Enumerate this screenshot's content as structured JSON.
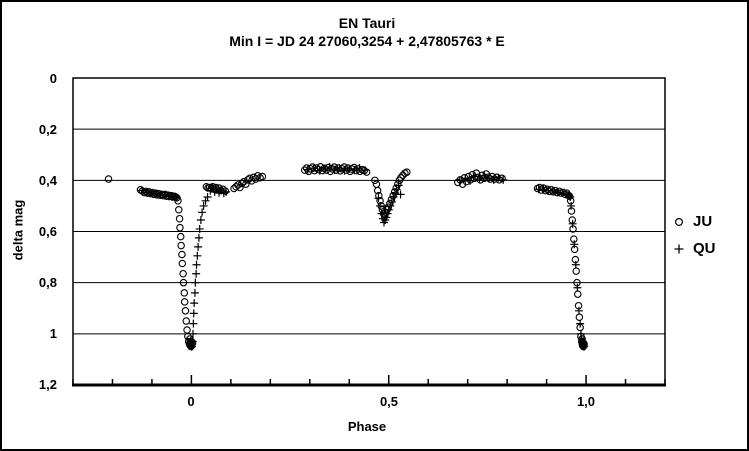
{
  "colors": {
    "background": "#ffffff",
    "foreground": "#000000"
  },
  "chart_data": {
    "type": "scatter",
    "title": "EN Tauri",
    "subtitle": "Min I = JD 24 27060,3254 + 2,47805763 * E",
    "xlabel": "Phase",
    "ylabel": "delta mag",
    "xlim": [
      -0.3,
      1.2
    ],
    "ylim": [
      0,
      1.2
    ],
    "y_axis_inverted": true,
    "grid": "horizontal-major",
    "y_gridlines": [
      0.2,
      0.4,
      0.6,
      0.8,
      1.0
    ],
    "x_minor_step": 0.1,
    "x_major_values": [
      0,
      0.5,
      1.0
    ],
    "x_ticks": [
      {
        "value": 0,
        "label": "0"
      },
      {
        "value": 0.5,
        "label": "0,5"
      },
      {
        "value": 1.0,
        "label": "1,0"
      }
    ],
    "y_ticks": [
      {
        "value": 0,
        "label": "0"
      },
      {
        "value": 0.2,
        "label": "0,2"
      },
      {
        "value": 0.4,
        "label": "0,4"
      },
      {
        "value": 0.6,
        "label": "0,6"
      },
      {
        "value": 0.8,
        "label": "0,8"
      },
      {
        "value": 1.0,
        "label": "1"
      },
      {
        "value": 1.2,
        "label": "1,2"
      }
    ],
    "legend_position": "right-outside",
    "series": [
      {
        "name": "JU",
        "marker": "circle",
        "points": [
          [
            -0.21,
            0.395
          ],
          [
            -0.129,
            0.437
          ],
          [
            -0.124,
            0.442
          ],
          [
            -0.119,
            0.448
          ],
          [
            -0.115,
            0.443
          ],
          [
            -0.111,
            0.45
          ],
          [
            -0.107,
            0.445
          ],
          [
            -0.103,
            0.452
          ],
          [
            -0.099,
            0.448
          ],
          [
            -0.095,
            0.455
          ],
          [
            -0.091,
            0.45
          ],
          [
            -0.087,
            0.457
          ],
          [
            -0.083,
            0.452
          ],
          [
            -0.079,
            0.458
          ],
          [
            -0.075,
            0.455
          ],
          [
            -0.071,
            0.46
          ],
          [
            -0.067,
            0.455
          ],
          [
            -0.063,
            0.462
          ],
          [
            -0.059,
            0.458
          ],
          [
            -0.055,
            0.463
          ],
          [
            -0.051,
            0.46
          ],
          [
            -0.047,
            0.465
          ],
          [
            -0.043,
            0.462
          ],
          [
            -0.04,
            0.465
          ],
          [
            -0.037,
            0.468
          ],
          [
            -0.034,
            0.48
          ],
          [
            -0.032,
            0.515
          ],
          [
            -0.03,
            0.55
          ],
          [
            -0.029,
            0.585
          ],
          [
            -0.027,
            0.62
          ],
          [
            -0.026,
            0.655
          ],
          [
            -0.024,
            0.69
          ],
          [
            -0.023,
            0.725
          ],
          [
            -0.021,
            0.765
          ],
          [
            -0.02,
            0.8
          ],
          [
            -0.018,
            0.84
          ],
          [
            -0.017,
            0.875
          ],
          [
            -0.015,
            0.91
          ],
          [
            -0.013,
            0.95
          ],
          [
            -0.011,
            0.985
          ],
          [
            -0.009,
            1.01
          ],
          [
            -0.007,
            1.03
          ],
          [
            -0.005,
            1.04
          ],
          [
            -0.004,
            1.02
          ],
          [
            -0.003,
            1.045
          ],
          [
            -0.002,
            1.04
          ],
          [
            -0.001,
            1.05
          ],
          [
            0.0,
            1.03
          ],
          [
            0.001,
            1.045
          ],
          [
            0.003,
            1.035
          ],
          [
            0.038,
            0.425
          ],
          [
            0.042,
            0.43
          ],
          [
            0.046,
            0.428
          ],
          [
            0.05,
            0.432
          ],
          [
            0.054,
            0.425
          ],
          [
            0.058,
            0.435
          ],
          [
            0.062,
            0.428
          ],
          [
            0.066,
            0.438
          ],
          [
            0.07,
            0.43
          ],
          [
            0.075,
            0.44
          ],
          [
            0.08,
            0.435
          ],
          [
            0.086,
            0.442
          ],
          [
            0.108,
            0.432
          ],
          [
            0.113,
            0.425
          ],
          [
            0.118,
            0.418
          ],
          [
            0.123,
            0.428
          ],
          [
            0.128,
            0.412
          ],
          [
            0.133,
            0.405
          ],
          [
            0.138,
            0.415
          ],
          [
            0.143,
            0.398
          ],
          [
            0.148,
            0.392
          ],
          [
            0.153,
            0.402
          ],
          [
            0.158,
            0.388
          ],
          [
            0.163,
            0.395
          ],
          [
            0.168,
            0.382
          ],
          [
            0.174,
            0.39
          ],
          [
            0.18,
            0.385
          ],
          [
            0.287,
            0.36
          ],
          [
            0.292,
            0.352
          ],
          [
            0.297,
            0.365
          ],
          [
            0.302,
            0.355
          ],
          [
            0.307,
            0.348
          ],
          [
            0.312,
            0.362
          ],
          [
            0.317,
            0.352
          ],
          [
            0.322,
            0.358
          ],
          [
            0.327,
            0.347
          ],
          [
            0.332,
            0.362
          ],
          [
            0.337,
            0.353
          ],
          [
            0.342,
            0.36
          ],
          [
            0.347,
            0.35
          ],
          [
            0.352,
            0.365
          ],
          [
            0.357,
            0.355
          ],
          [
            0.362,
            0.348
          ],
          [
            0.367,
            0.36
          ],
          [
            0.372,
            0.352
          ],
          [
            0.377,
            0.363
          ],
          [
            0.382,
            0.355
          ],
          [
            0.387,
            0.348
          ],
          [
            0.392,
            0.36
          ],
          [
            0.397,
            0.352
          ],
          [
            0.402,
            0.365
          ],
          [
            0.407,
            0.356
          ],
          [
            0.412,
            0.35
          ],
          [
            0.417,
            0.362
          ],
          [
            0.422,
            0.355
          ],
          [
            0.427,
            0.365
          ],
          [
            0.432,
            0.358
          ],
          [
            0.438,
            0.362
          ],
          [
            0.444,
            0.368
          ],
          [
            0.465,
            0.4
          ],
          [
            0.469,
            0.415
          ],
          [
            0.472,
            0.44
          ],
          [
            0.475,
            0.46
          ],
          [
            0.478,
            0.48
          ],
          [
            0.481,
            0.5
          ],
          [
            0.484,
            0.515
          ],
          [
            0.487,
            0.53
          ],
          [
            0.49,
            0.54
          ],
          [
            0.493,
            0.525
          ],
          [
            0.496,
            0.515
          ],
          [
            0.499,
            0.505
          ],
          [
            0.503,
            0.49
          ],
          [
            0.507,
            0.475
          ],
          [
            0.511,
            0.46
          ],
          [
            0.515,
            0.445
          ],
          [
            0.519,
            0.43
          ],
          [
            0.523,
            0.415
          ],
          [
            0.527,
            0.4
          ],
          [
            0.531,
            0.39
          ],
          [
            0.536,
            0.38
          ],
          [
            0.541,
            0.372
          ],
          [
            0.546,
            0.368
          ],
          [
            0.675,
            0.408
          ],
          [
            0.681,
            0.398
          ],
          [
            0.687,
            0.415
          ],
          [
            0.692,
            0.39
          ],
          [
            0.697,
            0.405
          ],
          [
            0.702,
            0.385
          ],
          [
            0.707,
            0.398
          ],
          [
            0.712,
            0.378
          ],
          [
            0.717,
            0.392
          ],
          [
            0.722,
            0.372
          ],
          [
            0.727,
            0.388
          ],
          [
            0.732,
            0.398
          ],
          [
            0.737,
            0.38
          ],
          [
            0.742,
            0.392
          ],
          [
            0.747,
            0.375
          ],
          [
            0.752,
            0.388
          ],
          [
            0.757,
            0.395
          ],
          [
            0.762,
            0.385
          ],
          [
            0.768,
            0.395
          ],
          [
            0.774,
            0.388
          ],
          [
            0.78,
            0.398
          ],
          [
            0.787,
            0.392
          ],
          [
            0.877,
            0.432
          ],
          [
            0.882,
            0.428
          ],
          [
            0.887,
            0.438
          ],
          [
            0.892,
            0.43
          ],
          [
            0.897,
            0.44
          ],
          [
            0.902,
            0.435
          ],
          [
            0.907,
            0.443
          ],
          [
            0.912,
            0.437
          ],
          [
            0.917,
            0.445
          ],
          [
            0.922,
            0.44
          ],
          [
            0.927,
            0.448
          ],
          [
            0.932,
            0.443
          ],
          [
            0.937,
            0.45
          ],
          [
            0.942,
            0.447
          ],
          [
            0.947,
            0.455
          ],
          [
            0.951,
            0.45
          ],
          [
            0.955,
            0.458
          ],
          [
            0.958,
            0.462
          ],
          [
            0.961,
            0.48
          ],
          [
            0.963,
            0.52
          ],
          [
            0.965,
            0.555
          ],
          [
            0.967,
            0.59
          ],
          [
            0.969,
            0.63
          ],
          [
            0.971,
            0.67
          ],
          [
            0.973,
            0.71
          ],
          [
            0.975,
            0.755
          ],
          [
            0.977,
            0.8
          ],
          [
            0.979,
            0.845
          ],
          [
            0.981,
            0.89
          ],
          [
            0.983,
            0.935
          ],
          [
            0.985,
            0.975
          ],
          [
            0.987,
            1.01
          ],
          [
            0.989,
            1.03
          ],
          [
            0.99,
            1.02
          ],
          [
            0.991,
            1.045
          ],
          [
            0.992,
            1.035
          ],
          [
            0.993,
            1.05
          ],
          [
            0.994,
            1.045
          ],
          [
            0.995,
            1.04
          ]
        ]
      },
      {
        "name": "QU",
        "marker": "plus",
        "points": [
          [
            -0.125,
            0.44
          ],
          [
            -0.113,
            0.447
          ],
          [
            -0.101,
            0.45
          ],
          [
            -0.09,
            0.453
          ],
          [
            -0.078,
            0.457
          ],
          [
            -0.066,
            0.458
          ],
          [
            -0.057,
            0.462
          ],
          [
            -0.049,
            0.464
          ],
          [
            -0.042,
            0.466
          ],
          [
            -0.037,
            0.468
          ],
          [
            -0.004,
            1.035
          ],
          [
            -0.002,
            1.03
          ],
          [
            0.0,
            1.045
          ],
          [
            0.001,
            1.05
          ],
          [
            0.002,
            1.04
          ],
          [
            0.003,
            1.03
          ],
          [
            0.004,
            1.0
          ],
          [
            0.005,
            0.96
          ],
          [
            0.006,
            0.92
          ],
          [
            0.007,
            0.88
          ],
          [
            0.009,
            0.84
          ],
          [
            0.01,
            0.8
          ],
          [
            0.012,
            0.765
          ],
          [
            0.013,
            0.73
          ],
          [
            0.015,
            0.695
          ],
          [
            0.017,
            0.66
          ],
          [
            0.019,
            0.625
          ],
          [
            0.021,
            0.59
          ],
          [
            0.024,
            0.555
          ],
          [
            0.027,
            0.525
          ],
          [
            0.031,
            0.5
          ],
          [
            0.036,
            0.48
          ],
          [
            0.041,
            0.465
          ],
          [
            0.048,
            0.44
          ],
          [
            0.053,
            0.43
          ],
          [
            0.059,
            0.445
          ],
          [
            0.064,
            0.435
          ],
          [
            0.07,
            0.448
          ],
          [
            0.076,
            0.438
          ],
          [
            0.082,
            0.45
          ],
          [
            0.088,
            0.445
          ],
          [
            0.295,
            0.358
          ],
          [
            0.31,
            0.352
          ],
          [
            0.325,
            0.362
          ],
          [
            0.338,
            0.355
          ],
          [
            0.35,
            0.348
          ],
          [
            0.363,
            0.36
          ],
          [
            0.375,
            0.352
          ],
          [
            0.388,
            0.362
          ],
          [
            0.4,
            0.355
          ],
          [
            0.413,
            0.36
          ],
          [
            0.426,
            0.352
          ],
          [
            0.44,
            0.36
          ],
          [
            0.474,
            0.47
          ],
          [
            0.478,
            0.5
          ],
          [
            0.482,
            0.53
          ],
          [
            0.485,
            0.55
          ],
          [
            0.488,
            0.565
          ],
          [
            0.491,
            0.555
          ],
          [
            0.494,
            0.545
          ],
          [
            0.497,
            0.53
          ],
          [
            0.5,
            0.515
          ],
          [
            0.504,
            0.5
          ],
          [
            0.508,
            0.485
          ],
          [
            0.512,
            0.465
          ],
          [
            0.516,
            0.45
          ],
          [
            0.52,
            0.435
          ],
          [
            0.525,
            0.42
          ],
          [
            0.53,
            0.455
          ],
          [
            0.68,
            0.4
          ],
          [
            0.694,
            0.392
          ],
          [
            0.706,
            0.402
          ],
          [
            0.718,
            0.385
          ],
          [
            0.73,
            0.395
          ],
          [
            0.742,
            0.382
          ],
          [
            0.754,
            0.392
          ],
          [
            0.766,
            0.398
          ],
          [
            0.778,
            0.39
          ],
          [
            0.79,
            0.398
          ],
          [
            0.88,
            0.435
          ],
          [
            0.892,
            0.435
          ],
          [
            0.904,
            0.44
          ],
          [
            0.916,
            0.442
          ],
          [
            0.928,
            0.447
          ],
          [
            0.94,
            0.45
          ],
          [
            0.949,
            0.455
          ],
          [
            0.956,
            0.46
          ],
          [
            0.96,
            0.465
          ],
          [
            0.962,
            0.5
          ],
          [
            0.966,
            0.57
          ],
          [
            0.97,
            0.65
          ],
          [
            0.974,
            0.73
          ],
          [
            0.978,
            0.82
          ],
          [
            0.982,
            0.91
          ],
          [
            0.985,
            0.96
          ],
          [
            0.987,
            1.0
          ],
          [
            0.989,
            1.02
          ],
          [
            0.991,
            1.04
          ],
          [
            0.992,
            1.03
          ],
          [
            0.993,
            1.045
          ],
          [
            0.995,
            1.05
          ]
        ]
      }
    ]
  }
}
